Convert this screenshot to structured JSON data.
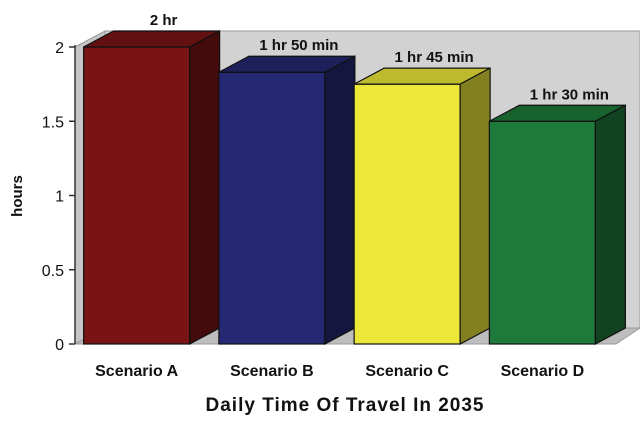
{
  "chart_data": {
    "type": "bar",
    "title": "",
    "xlabel": "Daily Time Of Travel In 2035",
    "ylabel": "hours",
    "categories": [
      "Scenario A",
      "Scenario B",
      "Scenario C",
      "Scenario D"
    ],
    "values": [
      2.0,
      1.83,
      1.75,
      1.5
    ],
    "data_labels": [
      "2 hr",
      "1 hr 50 min",
      "1 hr 45 min",
      "1 hr 30 min"
    ],
    "colors": [
      "#7a1414",
      "#252872",
      "#ece83a",
      "#1e7a3a"
    ],
    "ylim": [
      0,
      2
    ],
    "yticks": [
      "0",
      "0.5",
      "1",
      "1.5",
      "2"
    ],
    "grid": false,
    "legend": "none"
  }
}
